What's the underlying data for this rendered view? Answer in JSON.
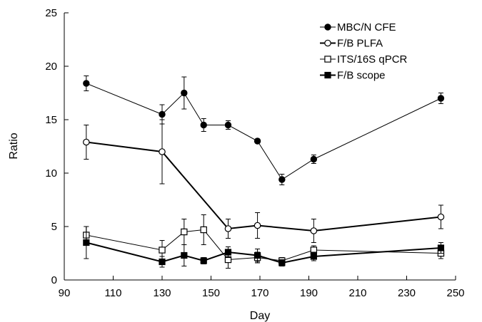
{
  "chart_data": {
    "type": "line",
    "title": "",
    "xlabel": "Day",
    "ylabel": "Ratio",
    "xlim": [
      90,
      250
    ],
    "ylim": [
      0,
      25
    ],
    "xticks": [
      90,
      110,
      130,
      150,
      170,
      190,
      210,
      230,
      250
    ],
    "yticks": [
      0,
      5,
      10,
      15,
      20,
      25
    ],
    "grid": false,
    "legend": {
      "position": "top-right"
    },
    "series": [
      {
        "name": "MBC/N CFE",
        "marker": "filled-circle",
        "line_width": 1,
        "x": [
          99,
          130,
          139,
          147,
          157,
          169,
          179,
          192,
          244
        ],
        "y": [
          18.4,
          15.5,
          17.5,
          14.5,
          14.5,
          13.0,
          9.4,
          11.3,
          17.0
        ],
        "err": [
          0.7,
          0.9,
          1.5,
          0.6,
          0.4,
          0.2,
          0.5,
          0.4,
          0.5
        ]
      },
      {
        "name": "F/B PLFA",
        "marker": "open-circle",
        "line_width": 2,
        "x": [
          99,
          130,
          157,
          169,
          192,
          244
        ],
        "y": [
          12.9,
          12.0,
          4.8,
          5.1,
          4.6,
          5.9
        ],
        "err": [
          1.6,
          3.0,
          0.9,
          1.2,
          1.1,
          1.1
        ]
      },
      {
        "name": "ITS/16S qPCR",
        "marker": "open-square",
        "line_width": 1,
        "x": [
          99,
          130,
          139,
          147,
          157,
          169,
          179,
          192,
          244
        ],
        "y": [
          4.2,
          2.8,
          4.5,
          4.7,
          1.9,
          2.1,
          1.8,
          2.8,
          2.5
        ],
        "err": [
          0.8,
          0.9,
          1.2,
          1.4,
          0.8,
          0.5,
          0.3,
          0.4,
          0.5
        ]
      },
      {
        "name": "F/B scope",
        "marker": "filled-square",
        "line_width": 2,
        "x": [
          99,
          130,
          139,
          147,
          157,
          169,
          179,
          192,
          244
        ],
        "y": [
          3.5,
          1.7,
          2.3,
          1.8,
          2.6,
          2.3,
          1.6,
          2.2,
          3.0
        ],
        "err": [
          1.5,
          0.5,
          1.0,
          0.3,
          0.5,
          0.6,
          0.3,
          0.4,
          0.5
        ]
      }
    ]
  }
}
